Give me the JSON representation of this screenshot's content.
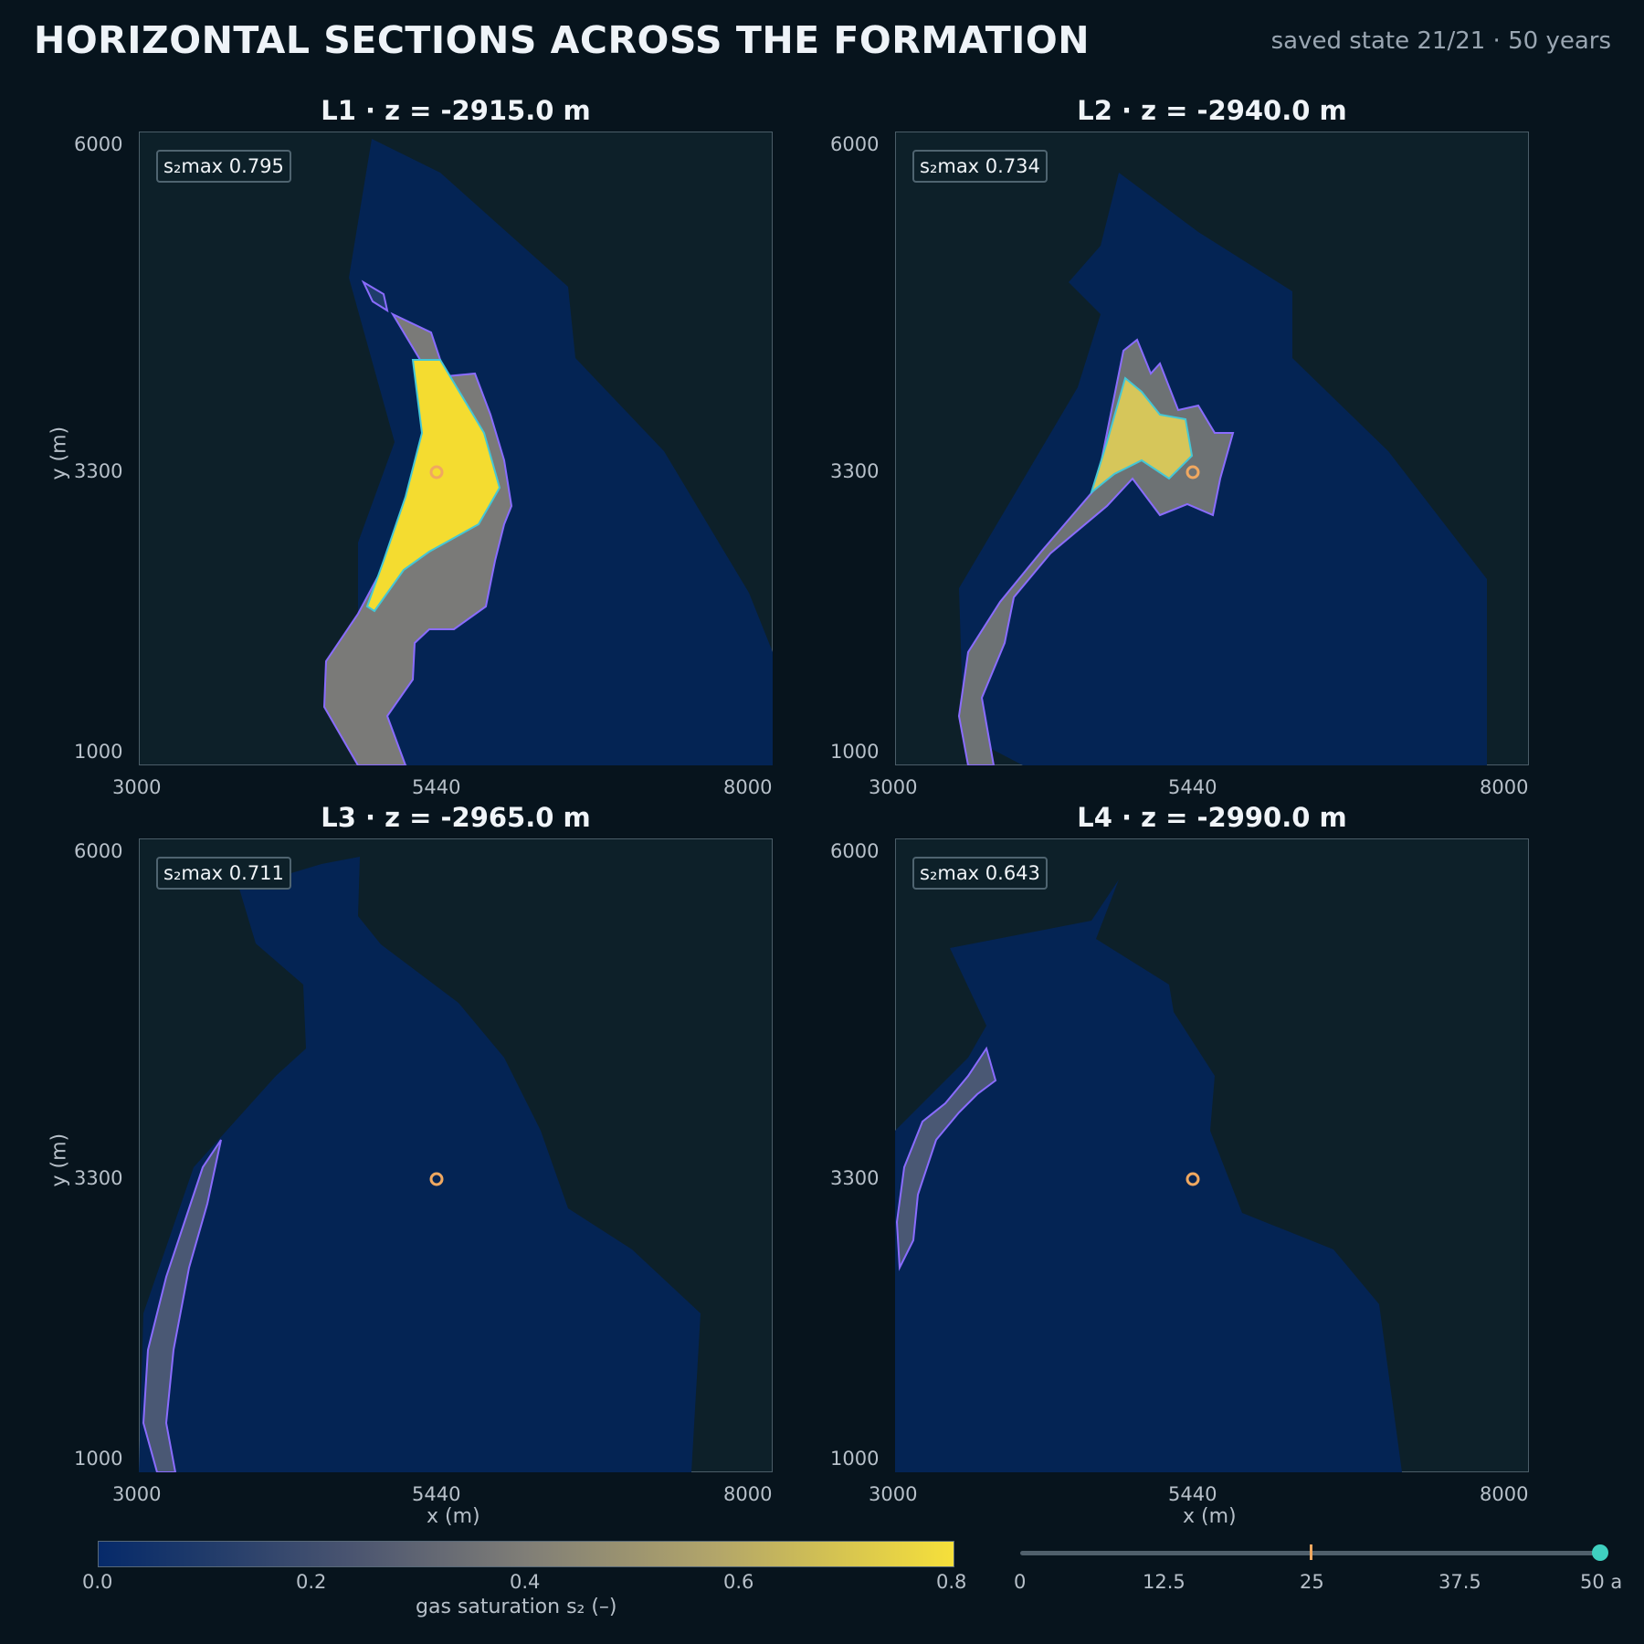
{
  "header": {
    "title": "HORIZONTAL SECTIONS ACROSS THE FORMATION",
    "state": "saved state 21/21 · 50 years"
  },
  "chart_data": [
    {
      "type": "heatmap",
      "title": "L1 · z = -2915.0 m",
      "xlabel": "",
      "ylabel": "y (m)",
      "xlim": [
        3000,
        8000
      ],
      "ylim": [
        1000,
        6000
      ],
      "x_ticks": [
        "3000",
        "5440",
        "8000"
      ],
      "y_ticks": [
        "6000",
        "3300",
        "1000"
      ],
      "annotation": "s₂max 0.795",
      "s2max": 0.795,
      "injection_point": [
        5440,
        3300
      ]
    },
    {
      "type": "heatmap",
      "title": "L2 · z = -2940.0 m",
      "xlabel": "",
      "ylabel": "",
      "xlim": [
        3000,
        8000
      ],
      "ylim": [
        1000,
        6000
      ],
      "x_ticks": [
        "3000",
        "5440",
        "8000"
      ],
      "y_ticks": [
        "6000",
        "3300",
        "1000"
      ],
      "annotation": "s₂max 0.734",
      "s2max": 0.734,
      "injection_point": [
        5440,
        3300
      ]
    },
    {
      "type": "heatmap",
      "title": "L3 · z = -2965.0 m",
      "xlabel": "x (m)",
      "ylabel": "y (m)",
      "xlim": [
        3000,
        8000
      ],
      "ylim": [
        1000,
        6000
      ],
      "x_ticks": [
        "3000",
        "5440",
        "8000"
      ],
      "y_ticks": [
        "6000",
        "3300",
        "1000"
      ],
      "annotation": "s₂max 0.711",
      "s2max": 0.711,
      "injection_point": [
        5440,
        3300
      ]
    },
    {
      "type": "heatmap",
      "title": "L4 · z = -2990.0 m",
      "xlabel": "x (m)",
      "ylabel": "",
      "xlim": [
        3000,
        8000
      ],
      "ylim": [
        1000,
        6000
      ],
      "x_ticks": [
        "3000",
        "5440",
        "8000"
      ],
      "y_ticks": [
        "6000",
        "3300",
        "1000"
      ],
      "annotation": "s₂max 0.643",
      "s2max": 0.643,
      "injection_point": [
        5440,
        3300
      ]
    }
  ],
  "colorbar": {
    "label": "gas saturation  s₂  (–)",
    "ticks": [
      "0.0",
      "0.2",
      "0.4",
      "0.6",
      "0.8"
    ],
    "range": [
      0,
      0.8
    ],
    "colors": {
      "low": "#062a6a",
      "high": "#f6e03a"
    }
  },
  "timeline": {
    "ticks": [
      "0",
      "12.5",
      "25",
      "37.5",
      "50 a"
    ],
    "marker_value": 25,
    "current_value": 50,
    "colors": {
      "marker": "#f0a860",
      "knob": "#3fd0c0",
      "track": "#50606c"
    }
  },
  "colors": {
    "background": "#07141d",
    "plot_bg": "#0d2029",
    "formation": "#042454",
    "contour": "#8a6cff",
    "injection": "#f0a860"
  }
}
